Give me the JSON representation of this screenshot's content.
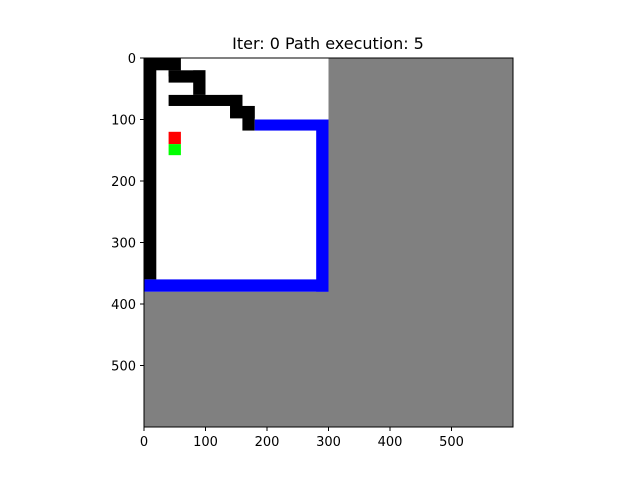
{
  "figure": {
    "title": "Iter: 0   Path execution: 5"
  },
  "chart_data": {
    "type": "heatmap",
    "title": "Iter: 0   Path execution: 5",
    "xlabel": "",
    "ylabel": "",
    "xlim": [
      0,
      600
    ],
    "ylim": [
      600,
      0
    ],
    "x_ticks": [
      0,
      100,
      200,
      300,
      400,
      500
    ],
    "y_ticks": [
      0,
      100,
      200,
      300,
      400,
      500
    ],
    "grid": false,
    "colors": {
      "unknown": "#808080",
      "free": "#ffffff",
      "obstacle": "#000000",
      "frontier": "#0000ff",
      "robot": "#ff0000",
      "goal": "#00ff00"
    },
    "regions": {
      "unknown": [
        {
          "x0": 0,
          "y0": 0,
          "x1": 600,
          "y1": 600
        }
      ],
      "free": [
        {
          "x0": 0,
          "y0": 0,
          "x1": 300,
          "y1": 380
        }
      ],
      "obstacle": [
        {
          "x0": 0,
          "y0": 0,
          "x1": 20,
          "y1": 360
        },
        {
          "x0": 0,
          "y0": 0,
          "x1": 60,
          "y1": 20
        },
        {
          "x0": 40,
          "y0": 20,
          "x1": 60,
          "y1": 30
        },
        {
          "x0": 40,
          "y0": 20,
          "x1": 100,
          "y1": 40
        },
        {
          "x0": 80,
          "y0": 20,
          "x1": 100,
          "y1": 60
        },
        {
          "x0": 40,
          "y0": 60,
          "x1": 160,
          "y1": 78
        },
        {
          "x0": 140,
          "y0": 60,
          "x1": 160,
          "y1": 98
        },
        {
          "x0": 140,
          "y0": 78,
          "x1": 180,
          "y1": 98
        },
        {
          "x0": 160,
          "y0": 78,
          "x1": 180,
          "y1": 118
        }
      ],
      "frontier": [
        {
          "x0": 180,
          "y0": 100,
          "x1": 300,
          "y1": 118
        },
        {
          "x0": 280,
          "y0": 100,
          "x1": 300,
          "y1": 380
        },
        {
          "x0": 0,
          "y0": 360,
          "x1": 300,
          "y1": 380
        }
      ],
      "robot": [
        {
          "x0": 40,
          "y0": 120,
          "x1": 60,
          "y1": 140
        }
      ],
      "goal": [
        {
          "x0": 40,
          "y0": 140,
          "x1": 60,
          "y1": 158
        }
      ]
    }
  }
}
